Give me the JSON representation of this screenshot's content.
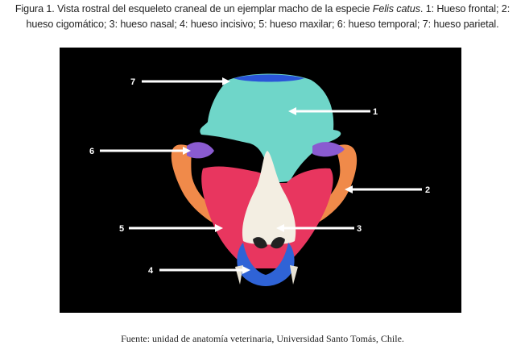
{
  "caption": {
    "prefix": "Figura 1. Vista rostral del esqueleto craneal de un ejemplar macho de la especie ",
    "species": "Felis catus",
    "suffix": ". 1: Hueso frontal; 2: hueso cigomático; 3: hueso nasal; 4: hueso incisivo; 5: hueso maxilar; 6: hueso temporal; 7: hueso parietal."
  },
  "labels": [
    "7",
    "1",
    "6",
    "2",
    "5",
    "3",
    "4"
  ],
  "bone_colors": {
    "frontal": "#6fd6c9",
    "parietal": "#2a55d8",
    "temporal": "#8a5bd0",
    "zygomatic": "#f08a4a",
    "maxilla": "#e8365f",
    "nasal": "#f3eee2",
    "incisive": "#2f63d6"
  },
  "source": "Fuente: unidad de anatomía veterinaria, Universidad Santo Tomás, Chile."
}
